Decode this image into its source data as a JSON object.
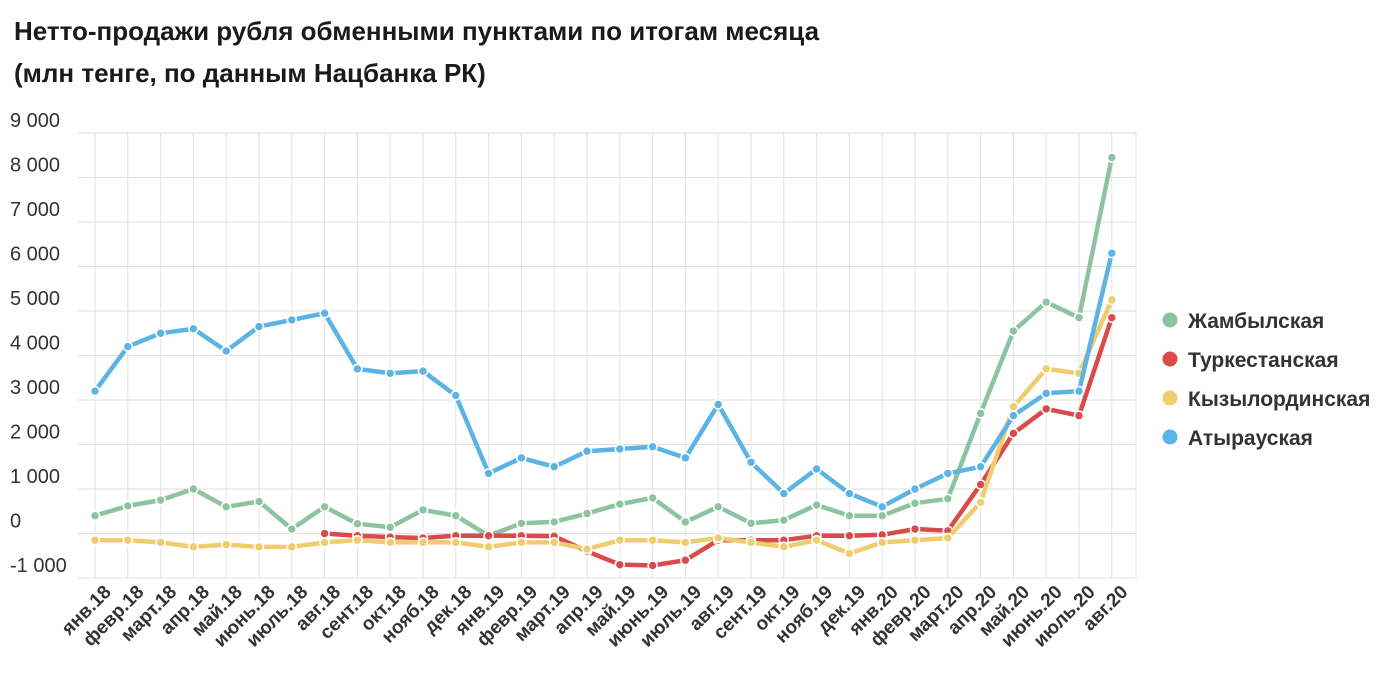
{
  "title": {
    "line1": "Нетто-продажи рубля обменными пунктами по итогам месяца",
    "line2": "(млн тенге, по данным Нацбанка РК)"
  },
  "chart_data": {
    "type": "line",
    "ylim": [
      -1000,
      9000
    ],
    "y_ticks": [
      {
        "value": 9000,
        "label": "9 000"
      },
      {
        "value": 8000,
        "label": "8 000"
      },
      {
        "value": 7000,
        "label": "7 000"
      },
      {
        "value": 6000,
        "label": "6 000"
      },
      {
        "value": 5000,
        "label": "5 000"
      },
      {
        "value": 4000,
        "label": "4 000"
      },
      {
        "value": 3000,
        "label": "3 000"
      },
      {
        "value": 2000,
        "label": "2 000"
      },
      {
        "value": 1000,
        "label": "1 000"
      },
      {
        "value": 0,
        "label": "0"
      },
      {
        "value": -1000,
        "label": "-1 000"
      }
    ],
    "grid": true,
    "legend_position": "right",
    "categories": [
      "янв.18",
      "февр.18",
      "март.18",
      "апр.18",
      "май.18",
      "июнь.18",
      "июль.18",
      "авг.18",
      "сент.18",
      "окт.18",
      "нояб.18",
      "дек.18",
      "янв.19",
      "февр.19",
      "март.19",
      "апр.19",
      "май.19",
      "июнь.19",
      "июль.19",
      "авг.19",
      "сент.19",
      "окт.19",
      "нояб.19",
      "дек.19",
      "янв.20",
      "февр.20",
      "март.20",
      "апр.20",
      "май.20",
      "июнь.20",
      "июль.20",
      "авг.20"
    ],
    "series": [
      {
        "name": "Жамбылская",
        "color": "#8cc3a0",
        "values": [
          400,
          620,
          750,
          1000,
          600,
          720,
          100,
          600,
          220,
          140,
          530,
          400,
          -50,
          230,
          260,
          450,
          660,
          800,
          260,
          600,
          230,
          300,
          640,
          400,
          400,
          680,
          780,
          2700,
          4550,
          5200,
          4850,
          8450
        ]
      },
      {
        "name": "Туркестанская",
        "color": "#d94a4a",
        "values": [
          null,
          null,
          null,
          null,
          null,
          null,
          null,
          0,
          -50,
          -80,
          -100,
          -50,
          -50,
          -50,
          -60,
          -400,
          -700,
          -720,
          -600,
          -150,
          -150,
          -150,
          -50,
          -50,
          -30,
          100,
          60,
          1100,
          2250,
          2800,
          2650,
          4850
        ]
      },
      {
        "name": "Кызылординская",
        "color": "#f0cc6e",
        "values": [
          -150,
          -150,
          -200,
          -300,
          -250,
          -300,
          -300,
          -200,
          -150,
          -200,
          -200,
          -200,
          -300,
          -200,
          -200,
          -350,
          -150,
          -150,
          -200,
          -100,
          -200,
          -300,
          -150,
          -450,
          -200,
          -150,
          -100,
          700,
          2850,
          3700,
          3600,
          5250
        ]
      },
      {
        "name": "Атырауская",
        "color": "#5cb4e4",
        "values": [
          3200,
          4200,
          4500,
          4600,
          4100,
          4650,
          4800,
          4950,
          3700,
          3600,
          3650,
          3100,
          1350,
          1700,
          1500,
          1850,
          1900,
          1950,
          1700,
          2900,
          1600,
          900,
          1450,
          900,
          600,
          1000,
          1350,
          1500,
          2650,
          3150,
          3200,
          6300
        ]
      }
    ]
  }
}
